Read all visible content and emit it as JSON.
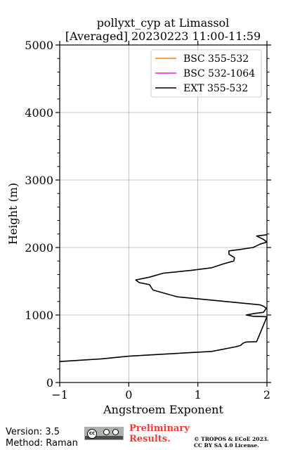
{
  "chart_data": {
    "type": "line",
    "title_line1": "pollyxt_cyp at Limassol",
    "title_line2": "[Averaged] 20230223 11:00-11:59",
    "xlabel": "Angstroem Exponent",
    "ylabel": "Height (m)",
    "xlim": [
      -1,
      2
    ],
    "ylim": [
      0,
      5000
    ],
    "xticks": [
      -1,
      0,
      1,
      2
    ],
    "xtick_labels": [
      "−1",
      "0",
      "1",
      "2"
    ],
    "yticks": [
      0,
      1000,
      2000,
      3000,
      4000,
      5000
    ],
    "ytick_labels": [
      "0",
      "1000",
      "2000",
      "3000",
      "4000",
      "5000"
    ],
    "grid": true,
    "legend_position": "top-right",
    "series": [
      {
        "name": "BSC 355-532",
        "color": "#ff7f0e",
        "x": [],
        "y": []
      },
      {
        "name": "BSC 532-1064",
        "color": "#e020e0",
        "x": [],
        "y": []
      },
      {
        "name": "EXT 355-532",
        "color": "#000000",
        "x": [
          -1.0,
          -0.4,
          0.0,
          0.5,
          1.2,
          1.55,
          1.62,
          1.65,
          1.7,
          1.85,
          2.0,
          1.8,
          1.7,
          1.8,
          1.95,
          1.99,
          1.95,
          1.9,
          1.6,
          0.7,
          0.35,
          0.3,
          0.15,
          0.1,
          0.3,
          0.5,
          0.9,
          1.2,
          1.38,
          1.52,
          1.53,
          1.45,
          1.45,
          1.6,
          1.8,
          1.9,
          2.0,
          1.95,
          1.85,
          2.0
        ],
        "y": [
          310,
          350,
          390,
          420,
          460,
          530,
          550,
          580,
          600,
          605,
          975,
          980,
          1000,
          1020,
          1040,
          1100,
          1130,
          1150,
          1180,
          1270,
          1370,
          1450,
          1480,
          1520,
          1560,
          1620,
          1660,
          1700,
          1760,
          1800,
          1850,
          1900,
          1950,
          1970,
          2000,
          2050,
          2080,
          2120,
          2170,
          2190
        ]
      }
    ]
  },
  "footer": {
    "version": "Version: 3.5",
    "method": "Method: Raman",
    "preliminary_line1": "Preliminary",
    "preliminary_line2": "Results.",
    "copyright_line1": "© TROPOS & ECoE 2023.",
    "copyright_line2": "CC BY SA 4.0 License.",
    "license_badge": "cc-by-sa-badge"
  }
}
